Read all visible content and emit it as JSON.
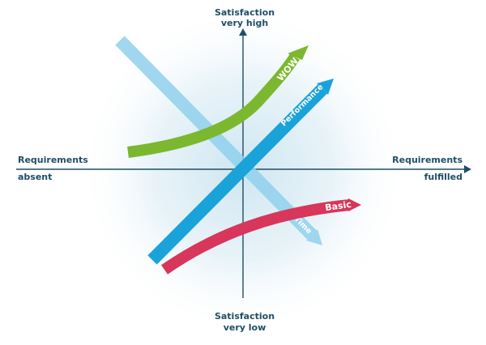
{
  "axes": {
    "top_line1": "Satisfaction",
    "top_line2": "very high",
    "bottom_line1": "Satisfaction",
    "bottom_line2": "very low",
    "left_line1": "Requirements",
    "left_line2": "absent",
    "right_line1": "Requirements",
    "right_line2": "fulfilled"
  },
  "curves": {
    "wow": {
      "label": "WOW",
      "color": "#7cb82f"
    },
    "performance": {
      "label": "Performance",
      "color": "#1aa3d9"
    },
    "time": {
      "label": "Time",
      "color": "#8fd0ec"
    },
    "basic": {
      "label": "Basic",
      "color": "#d8365a"
    }
  },
  "colors": {
    "axis": "#1f4e64",
    "glow": "#d8ecf4"
  }
}
